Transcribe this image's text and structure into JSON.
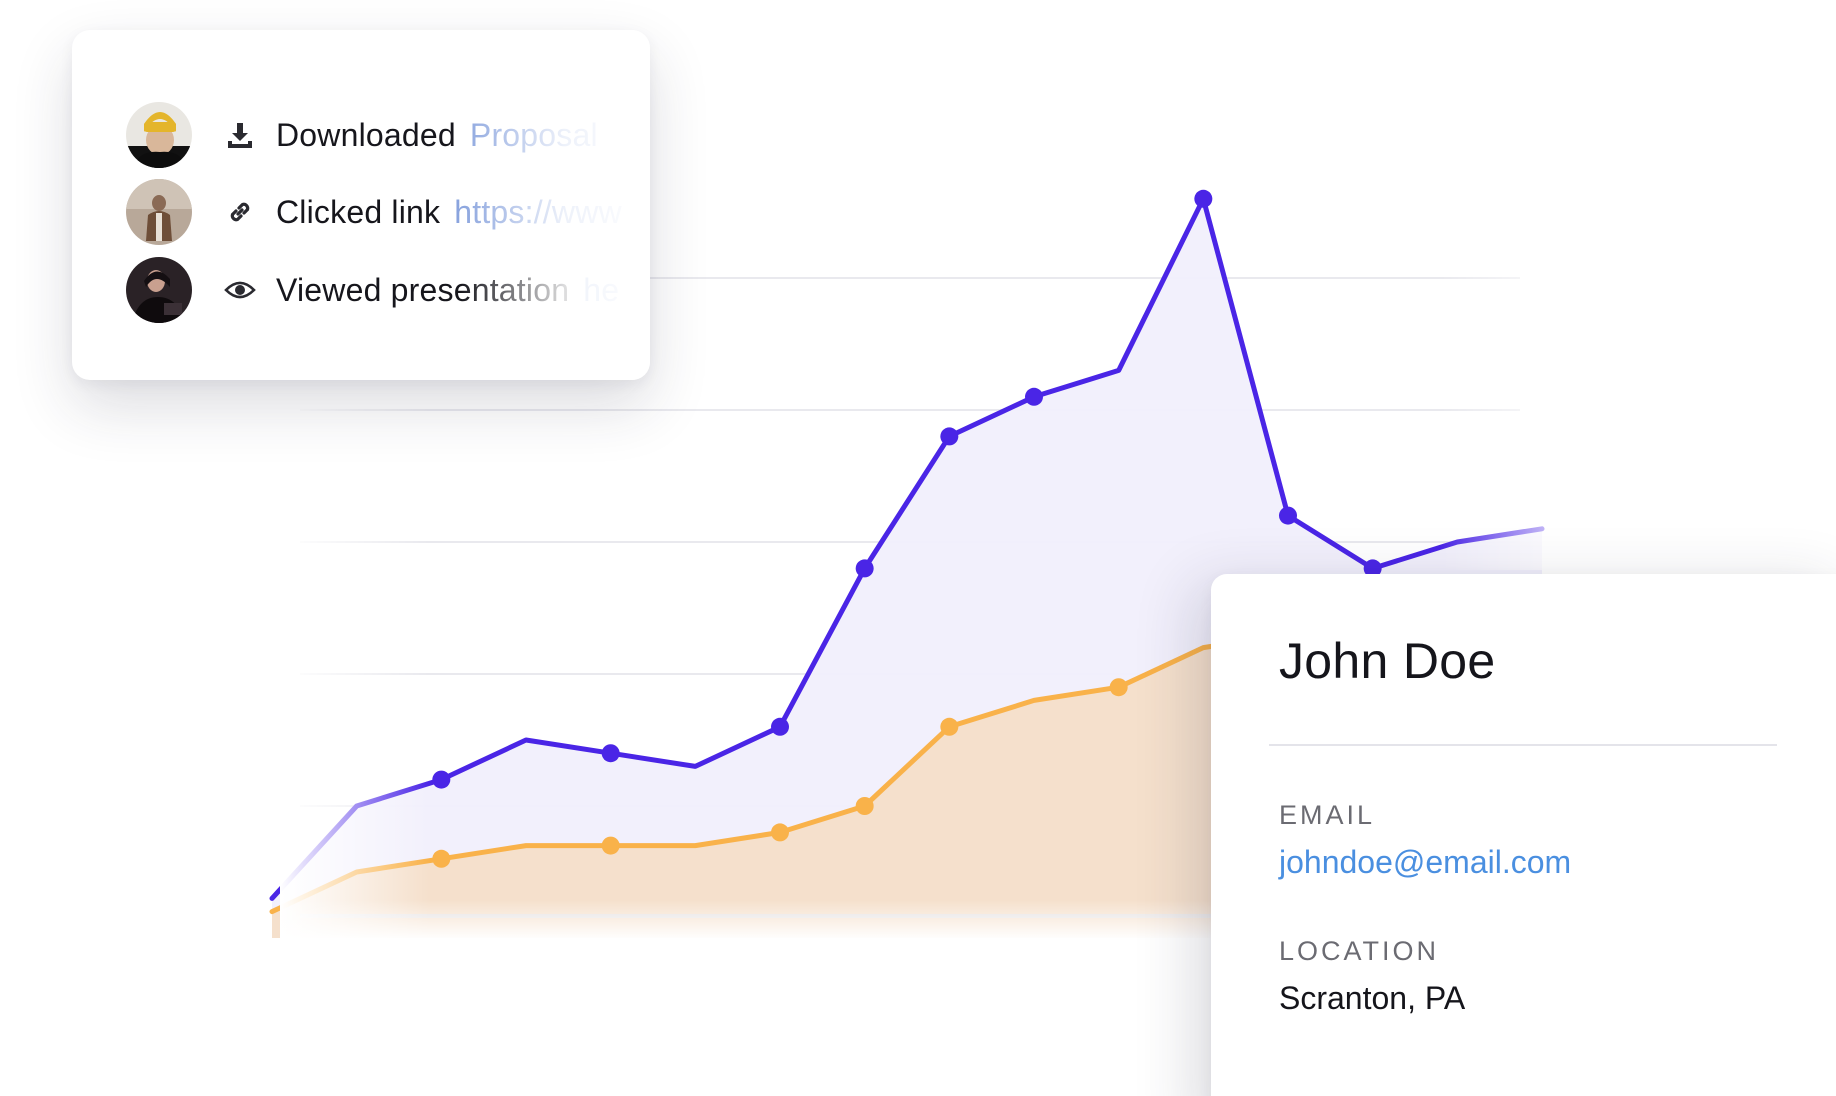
{
  "activity_feed": {
    "items": [
      {
        "action": "Downloaded",
        "detail": "Proposal",
        "icon": "download-icon",
        "avatar": "avatar-yellow-beanie"
      },
      {
        "action": "Clicked link",
        "detail": "https://www",
        "icon": "link-icon",
        "avatar": "avatar-brown-coat"
      },
      {
        "action": "Viewed presentation",
        "detail": "he",
        "icon": "eye-icon",
        "avatar": "avatar-dark"
      }
    ]
  },
  "contact": {
    "name": "John Doe",
    "email_label": "EMAIL",
    "email": "johndoe@email.com",
    "location_label": "LOCATION",
    "location": "Scranton, PA"
  },
  "colors": {
    "purple_series": "#4a25e6",
    "orange_series": "#f9b24a",
    "purple_fill": "#f1effc",
    "orange_fill": "#f5e0cc",
    "link_blue": "#4a8fe0",
    "faded_link": "#8aa4de",
    "gridline": "#e9e9ee"
  },
  "chart_data": {
    "type": "area",
    "grid": true,
    "x": [
      0,
      1,
      2,
      3,
      4,
      5,
      6,
      7,
      8,
      9,
      10,
      11,
      12,
      13,
      14,
      15
    ],
    "series": [
      {
        "values": [
          0.3,
          1.0,
          1.2,
          1.5,
          1.4,
          1.3,
          1.6,
          2.8,
          3.8,
          4.1,
          4.3,
          5.6,
          3.2,
          2.8,
          3.0,
          3.1
        ],
        "markers": [
          false,
          false,
          true,
          false,
          true,
          false,
          true,
          true,
          true,
          true,
          false,
          true,
          true,
          true,
          false,
          false
        ]
      },
      {
        "values": [
          0.2,
          0.5,
          0.6,
          0.7,
          0.7,
          0.7,
          0.8,
          1.0,
          1.6,
          1.8,
          1.9,
          2.2,
          2.3,
          2.4,
          2.5,
          2.5
        ],
        "markers": [
          false,
          false,
          true,
          false,
          true,
          false,
          true,
          true,
          true,
          false,
          true,
          false,
          false,
          false,
          false,
          false
        ]
      }
    ],
    "ylim": [
      -1,
      6.5
    ]
  }
}
